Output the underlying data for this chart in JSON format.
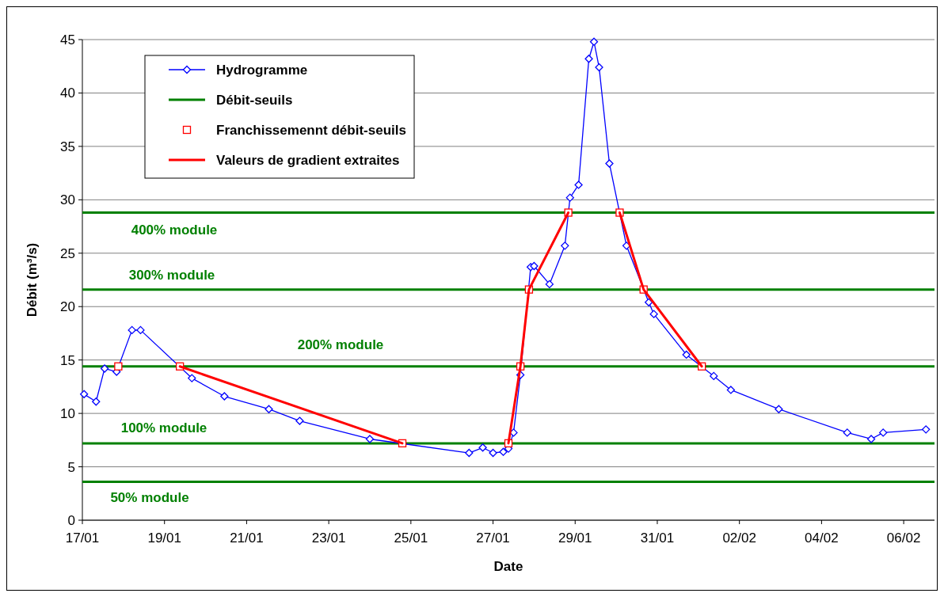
{
  "chart_data": {
    "type": "line",
    "xlabel": "Date",
    "ylabel": "Débit (m³/s)",
    "xlim": [
      "--01-17",
      "--02-06T18:00"
    ],
    "xticks": [
      {
        "value": "--01-17",
        "label": "17/01"
      },
      {
        "value": "--01-19",
        "label": "19/01"
      },
      {
        "value": "--01-21",
        "label": "21/01"
      },
      {
        "value": "--01-23",
        "label": "23/01"
      },
      {
        "value": "--01-25",
        "label": "25/01"
      },
      {
        "value": "--01-27",
        "label": "27/01"
      },
      {
        "value": "--01-29",
        "label": "29/01"
      },
      {
        "value": "--01-31",
        "label": "31/01"
      },
      {
        "value": "--02-02",
        "label": "02/02"
      },
      {
        "value": "--02-04",
        "label": "04/02"
      },
      {
        "value": "--02-06",
        "label": "06/02"
      }
    ],
    "ylim": [
      0,
      45
    ],
    "yticks": [
      0,
      5,
      10,
      15,
      20,
      25,
      30,
      35,
      40,
      45
    ],
    "grid": "y",
    "legend": "top left",
    "series": [
      {
        "name": "Hydrogramme",
        "marker": "diamond",
        "color": "#0000ff",
        "x": [
          "--01-17T01:00",
          "--01-17T08:00",
          "--01-17T13:00",
          "--01-17T20:00",
          "--01-18T05:00",
          "--01-18T10:00",
          "--01-19T16:00",
          "--01-20T11:00",
          "--01-21T13:00",
          "--01-22T07:00",
          "--01-24T00:00",
          "--01-26T10:00",
          "--01-26T18:00",
          "--01-27T00:00",
          "--01-27T06:00",
          "--01-27T09:00",
          "--01-27T12:00",
          "--01-27T16:00",
          "--01-27T22:00",
          "--01-28T00:00",
          "--01-28T09:00",
          "--01-28T18:00",
          "--01-28T21:00",
          "--01-29T02:00",
          "--01-29T08:00",
          "--01-29T11:00",
          "--01-29T14:00",
          "--01-29T20:00",
          "--01-30T06:00",
          "--01-30T19:00",
          "--01-30T22:00",
          "--01-31T17:00",
          "--02-01T09:00",
          "--02-01T19:00",
          "--02-02T23:00",
          "--02-04T15:00",
          "--02-05T05:00",
          "--02-05T12:00",
          "--02-06T13:00"
        ],
        "values": [
          11.8,
          11.1,
          14.2,
          13.9,
          17.8,
          17.8,
          13.3,
          11.6,
          10.4,
          9.3,
          7.6,
          6.3,
          6.8,
          6.3,
          6.4,
          6.7,
          8.2,
          13.6,
          23.7,
          23.8,
          22.1,
          25.7,
          30.2,
          31.4,
          43.2,
          44.8,
          42.4,
          33.4,
          25.7,
          20.4,
          19.3,
          15.5,
          13.5,
          12.2,
          10.4,
          8.2,
          7.6,
          8.2,
          8.5
        ]
      },
      {
        "name": "Franchissemennt débit-seuils",
        "type": "scatter",
        "marker": "square",
        "color": "#ff0000",
        "x": [
          "--01-17T21:00",
          "--01-19T09:00",
          "--01-24T19:00",
          "--01-27T09:00",
          "--01-27T16:00",
          "--01-27T21:00",
          "--01-28T20:00",
          "--01-30T02:00",
          "--01-30T16:00",
          "--02-01T02:00"
        ],
        "values": [
          14.4,
          14.4,
          7.2,
          7.2,
          14.4,
          21.6,
          28.8,
          28.8,
          21.6,
          14.4
        ]
      },
      {
        "name": "Valeurs de gradient extraites",
        "marker": "none",
        "color": "#ff0000",
        "x": [
          "--01-19T09:00",
          "--01-24T19:00",
          "--01-26T00:00",
          "--01-27T09:00",
          "--01-27T16:00",
          "--01-27T21:00",
          "--01-28T20:00",
          "--01-29T12:00",
          "--01-30T02:00",
          "--01-30T16:00",
          "--02-01T02:00"
        ],
        "values": [
          14.4,
          7.2,
          null,
          7.2,
          14.4,
          21.6,
          28.8,
          null,
          28.8,
          21.6,
          14.4
        ]
      }
    ],
    "ref_lines": [
      {
        "axis": "y",
        "value": 3.6,
        "label": "50% module",
        "color": "#008000"
      },
      {
        "axis": "y",
        "value": 7.2,
        "label": "100% module",
        "color": "#008000"
      },
      {
        "axis": "y",
        "value": 14.4,
        "label": "200% module",
        "color": "#008000"
      },
      {
        "axis": "y",
        "value": 21.6,
        "label": "300% module",
        "color": "#008000"
      },
      {
        "axis": "y",
        "value": 28.8,
        "label": "400% module",
        "color": "#008000"
      }
    ],
    "annotations": [
      "Débit-seuils"
    ]
  }
}
